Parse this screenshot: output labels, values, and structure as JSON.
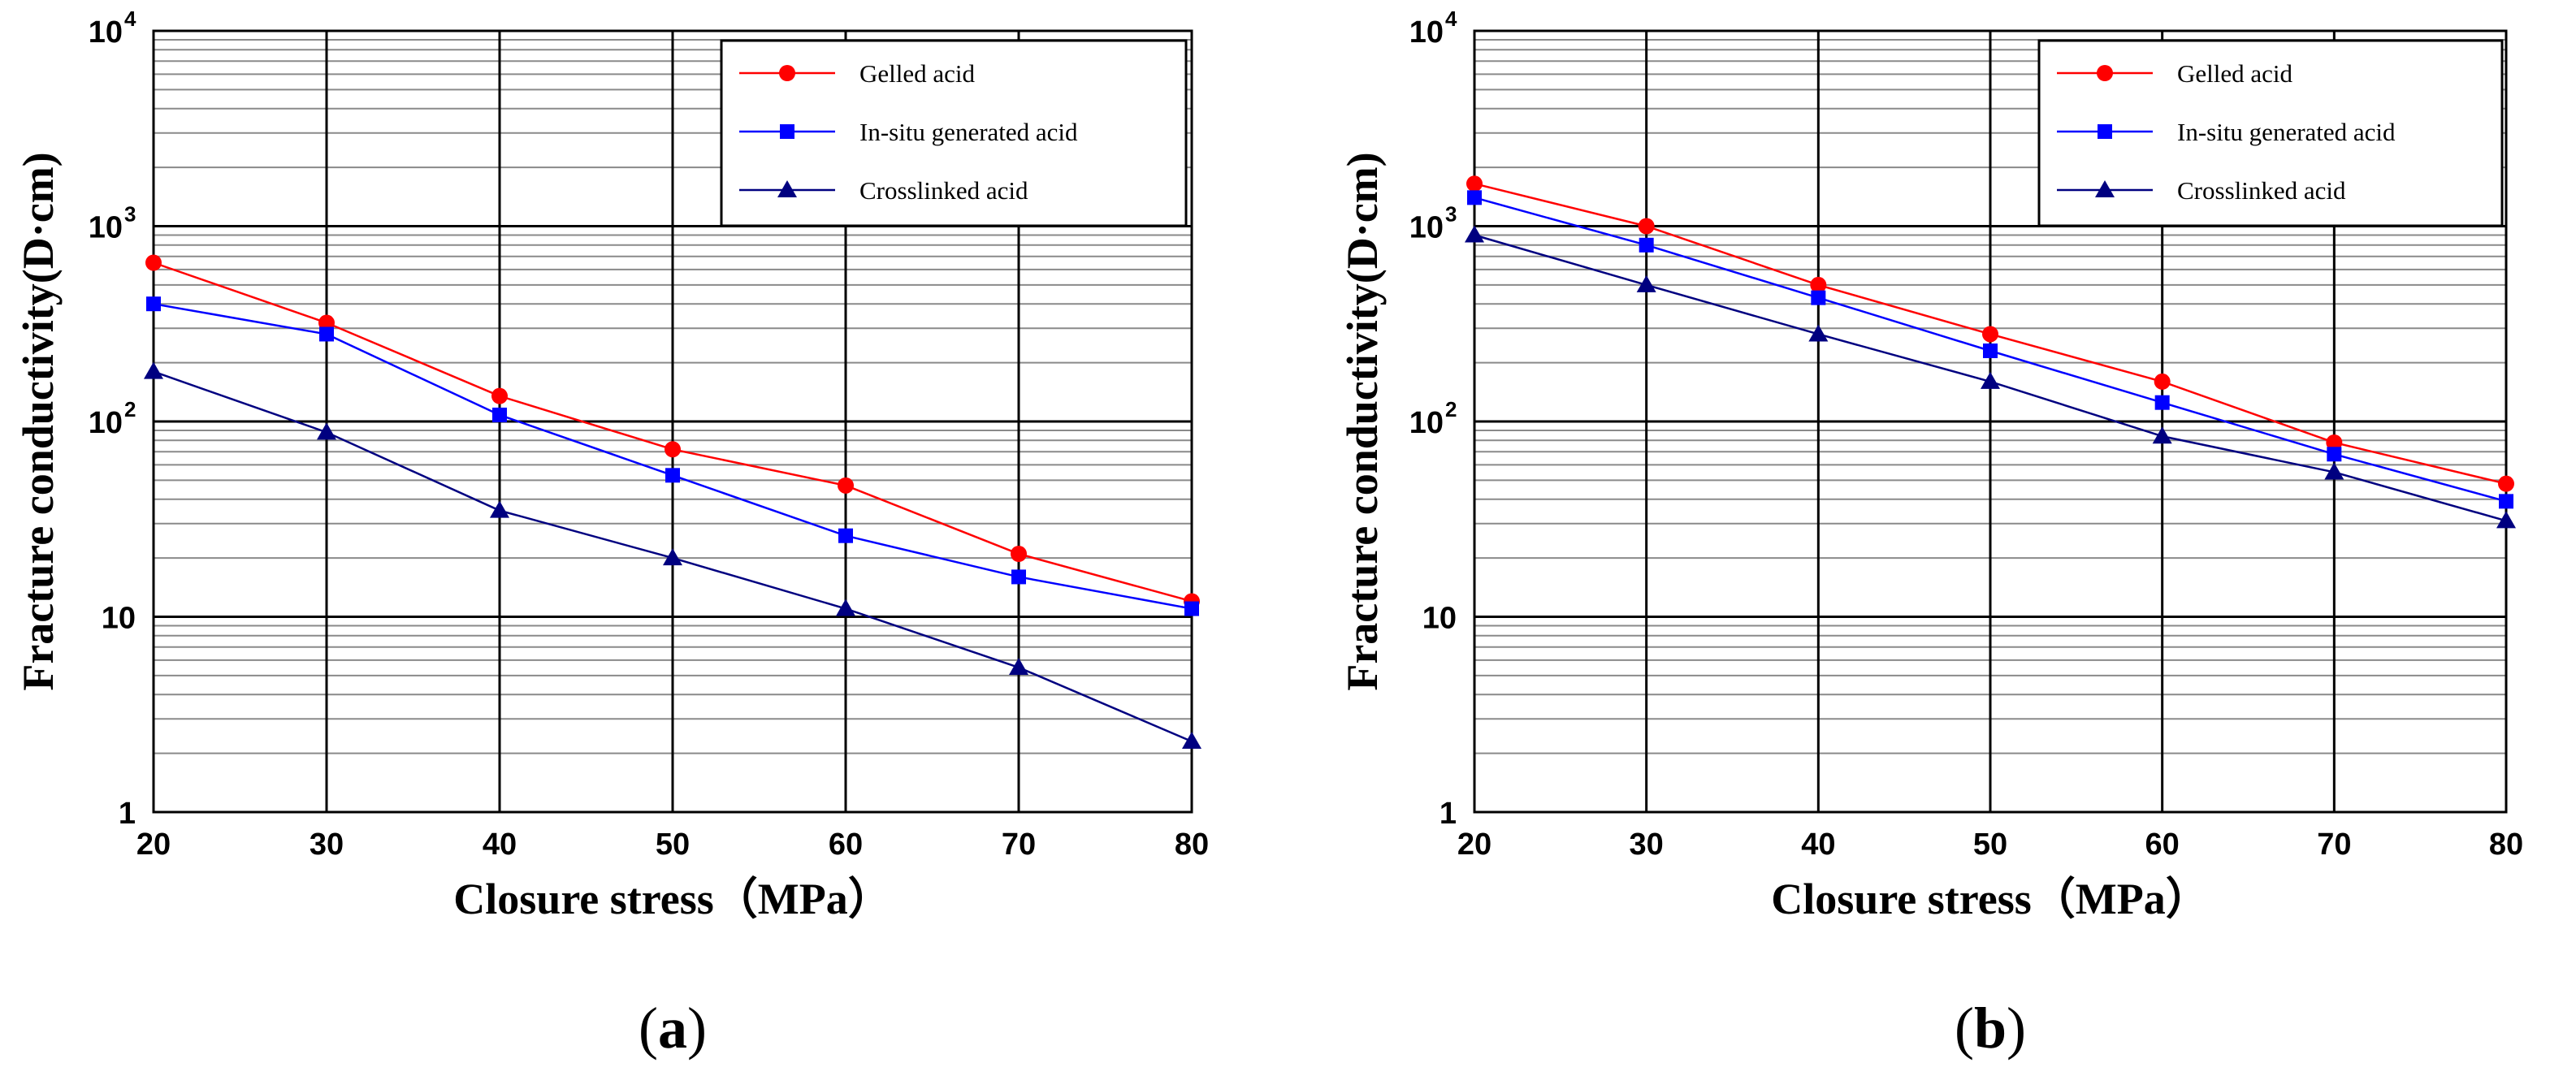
{
  "chart_data": [
    {
      "type": "line",
      "caption": "a",
      "xlabel": "Closure stress（MPa）",
      "ylabel": "Fracture conductivity(D·cm)",
      "x": [
        20,
        30,
        40,
        50,
        60,
        70,
        80
      ],
      "xlim": [
        20,
        80
      ],
      "ylim": [
        1,
        10000
      ],
      "yscale": "log",
      "grid": true,
      "legend_position": "top-right",
      "series": [
        {
          "name": "Gelled acid",
          "color": "#ff0000",
          "marker": "circle",
          "values": [
            650,
            320,
            135,
            72,
            47,
            21,
            12
          ]
        },
        {
          "name": "In-situ generated acid",
          "color": "#0000ff",
          "marker": "square",
          "values": [
            400,
            280,
            108,
            53,
            26,
            16,
            11
          ]
        },
        {
          "name": "Crosslinked acid",
          "color": "#000080",
          "marker": "triangle",
          "values": [
            180,
            88,
            35,
            20,
            11,
            5.5,
            2.3
          ]
        }
      ]
    },
    {
      "type": "line",
      "caption": "b",
      "xlabel": "Closure stress（MPa）",
      "ylabel": "Fracture conductivity(D·cm)",
      "x": [
        20,
        30,
        40,
        50,
        60,
        70,
        80
      ],
      "xlim": [
        20,
        80
      ],
      "ylim": [
        1,
        10000
      ],
      "yscale": "log",
      "grid": true,
      "legend_position": "top-right",
      "series": [
        {
          "name": "Gelled acid",
          "color": "#ff0000",
          "marker": "circle",
          "values": [
            1650,
            1000,
            500,
            280,
            160,
            78,
            48
          ]
        },
        {
          "name": "In-situ generated acid",
          "color": "#0000ff",
          "marker": "square",
          "values": [
            1400,
            800,
            430,
            230,
            125,
            68,
            39
          ]
        },
        {
          "name": "Crosslinked acid",
          "color": "#000080",
          "marker": "triangle",
          "values": [
            900,
            500,
            280,
            160,
            84,
            55,
            31
          ]
        }
      ]
    }
  ]
}
